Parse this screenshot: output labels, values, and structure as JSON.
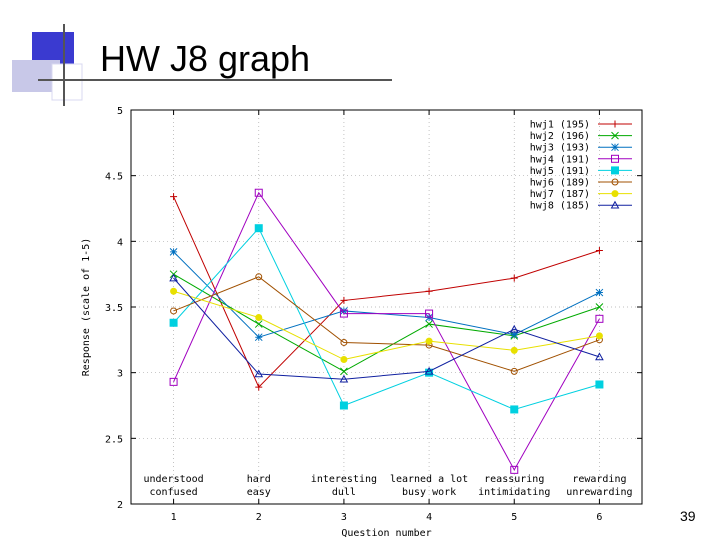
{
  "slide": {
    "title": "HW J8 graph",
    "number": "39"
  },
  "colors": {
    "hwj1": "#c00000",
    "hwj2": "#00aa00",
    "hwj3": "#0070c0",
    "hwj4": "#a000c0",
    "hwj5": "#00d0e0",
    "hwj6": "#a05000",
    "hwj7": "#e8e000",
    "hwj8": "#1020a0"
  },
  "chart_data": {
    "type": "line",
    "title": "",
    "xlabel": "Question number",
    "ylabel": "Response (scale of 1-5)",
    "x": [
      1,
      2,
      3,
      4,
      5,
      6
    ],
    "xlim": [
      0.5,
      6.5
    ],
    "ylim": [
      2,
      5
    ],
    "yticks": [
      "2",
      "2.5",
      "3",
      "3.5",
      "4",
      "4.5",
      "5"
    ],
    "xticks": [
      "1",
      "2",
      "3",
      "4",
      "5",
      "6"
    ],
    "grid": true,
    "legend_position": "top-right",
    "category_labels": [
      {
        "top": "understood",
        "bottom": "confused"
      },
      {
        "top": "hard",
        "bottom": "easy"
      },
      {
        "top": "interesting",
        "bottom": "dull"
      },
      {
        "top": "learned a lot",
        "bottom": "busy work"
      },
      {
        "top": "reassuring",
        "bottom": "intimidating"
      },
      {
        "top": "rewarding",
        "bottom": "unrewarding"
      }
    ],
    "series": [
      {
        "name": "hwj1",
        "legend": "hwj1 (195)",
        "marker": "plus",
        "values": [
          4.34,
          2.89,
          3.55,
          3.62,
          3.72,
          3.93
        ]
      },
      {
        "name": "hwj2",
        "legend": "hwj2 (196)",
        "marker": "x",
        "values": [
          3.75,
          3.37,
          3.01,
          3.37,
          3.28,
          3.5
        ]
      },
      {
        "name": "hwj3",
        "legend": "hwj3 (193)",
        "marker": "star",
        "values": [
          3.92,
          3.27,
          3.47,
          3.42,
          3.29,
          3.61
        ]
      },
      {
        "name": "hwj4",
        "legend": "hwj4 (191)",
        "marker": "square",
        "values": [
          2.93,
          4.37,
          3.45,
          3.45,
          2.26,
          3.41
        ]
      },
      {
        "name": "hwj5",
        "legend": "hwj5 (191)",
        "marker": "filled-square",
        "values": [
          3.38,
          4.1,
          2.75,
          3.0,
          2.72,
          2.91
        ]
      },
      {
        "name": "hwj6",
        "legend": "hwj6 (189)",
        "marker": "circle",
        "values": [
          3.47,
          3.73,
          3.23,
          3.21,
          3.01,
          3.25
        ]
      },
      {
        "name": "hwj7",
        "legend": "hwj7 (187)",
        "marker": "filled-circle",
        "values": [
          3.62,
          3.42,
          3.1,
          3.24,
          3.17,
          3.28
        ]
      },
      {
        "name": "hwj8",
        "legend": "hwj8 (185)",
        "marker": "triangle",
        "values": [
          3.72,
          2.99,
          2.95,
          3.01,
          3.33,
          3.12
        ]
      }
    ]
  }
}
